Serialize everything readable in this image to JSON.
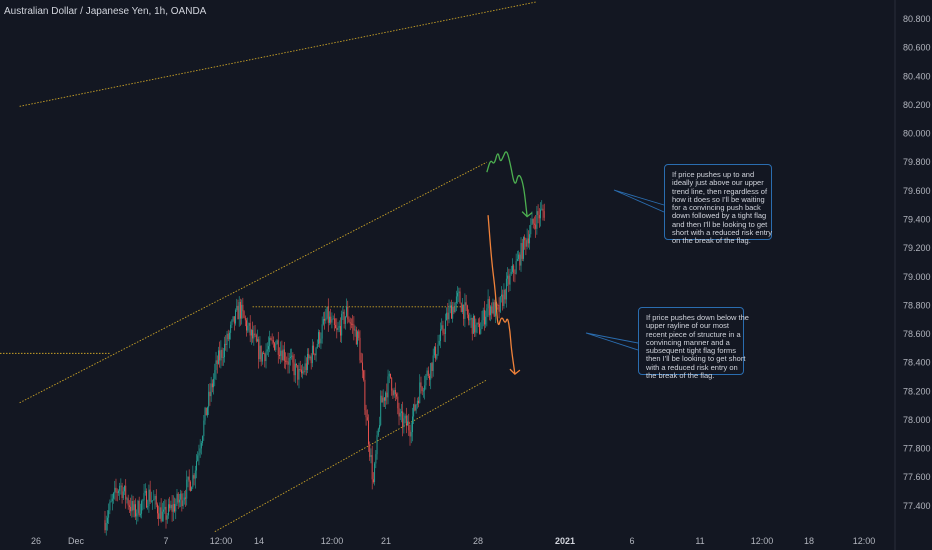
{
  "header": {
    "title": "Australian Dollar / Japanese Yen, 1h, OANDA"
  },
  "colors": {
    "background": "#131722",
    "up": "#26a69a",
    "down": "#ef5350",
    "trendline": "#c9a227",
    "green_path": "#4caf50",
    "orange_path": "#f0823a",
    "note_border": "#2a6db0"
  },
  "chart_data": {
    "type": "candlestick",
    "title": "Australian Dollar / Japanese Yen, 1h, OANDA",
    "xlabel": "",
    "ylabel": "",
    "ylim": [
      77.2,
      80.9
    ],
    "y_ticks": [
      "80.800",
      "80.600",
      "80.400",
      "80.200",
      "80.000",
      "79.800",
      "79.600",
      "79.400",
      "79.200",
      "79.000",
      "78.800",
      "78.600",
      "78.400",
      "78.200",
      "78.000",
      "77.800",
      "77.600",
      "77.400"
    ],
    "x_ticks": [
      {
        "label": "26",
        "bold": false
      },
      {
        "label": "Dec",
        "bold": false
      },
      {
        "label": "7",
        "bold": false
      },
      {
        "label": "12:00",
        "bold": false
      },
      {
        "label": "14",
        "bold": false
      },
      {
        "label": "12:00",
        "bold": false
      },
      {
        "label": "21",
        "bold": false
      },
      {
        "label": "28",
        "bold": false
      },
      {
        "label": "2021",
        "bold": true
      },
      {
        "label": "6",
        "bold": false
      },
      {
        "label": "11",
        "bold": false
      },
      {
        "label": "12:00",
        "bold": false
      },
      {
        "label": "18",
        "bold": false
      },
      {
        "label": "12:00",
        "bold": false
      }
    ],
    "price_path": [
      [
        0,
        77.3
      ],
      [
        12,
        77.55
      ],
      [
        24,
        77.35
      ],
      [
        36,
        77.48
      ],
      [
        48,
        77.32
      ],
      [
        62,
        77.45
      ],
      [
        72,
        77.6
      ],
      [
        84,
        78.1
      ],
      [
        92,
        78.4
      ],
      [
        100,
        78.55
      ],
      [
        110,
        78.78
      ],
      [
        118,
        78.62
      ],
      [
        128,
        78.45
      ],
      [
        140,
        78.55
      ],
      [
        150,
        78.42
      ],
      [
        160,
        78.3
      ],
      [
        172,
        78.5
      ],
      [
        182,
        78.72
      ],
      [
        190,
        78.6
      ],
      [
        198,
        78.75
      ],
      [
        208,
        78.55
      ],
      [
        214,
        78.05
      ],
      [
        220,
        77.55
      ],
      [
        226,
        78.1
      ],
      [
        234,
        78.3
      ],
      [
        242,
        78.0
      ],
      [
        250,
        77.95
      ],
      [
        258,
        78.22
      ],
      [
        266,
        78.35
      ],
      [
        274,
        78.55
      ],
      [
        282,
        78.75
      ],
      [
        290,
        78.85
      ],
      [
        298,
        78.7
      ],
      [
        306,
        78.62
      ],
      [
        314,
        78.8
      ],
      [
        322,
        78.75
      ],
      [
        330,
        78.95
      ],
      [
        338,
        79.1
      ],
      [
        346,
        79.28
      ],
      [
        354,
        79.42
      ],
      [
        360,
        79.46
      ]
    ],
    "support_line": {
      "from": [
        0.0,
        78.465
      ],
      "to": [
        0.33,
        78.465
      ]
    },
    "resistance_line": {
      "from": [
        -2,
        78.79
      ],
      "to": [
        192,
        78.79
      ]
    },
    "upper_trendline": {
      "from": [
        -70,
        78.12
      ],
      "to": [
        313,
        79.8
      ]
    },
    "lower_trendline": {
      "from": [
        90,
        77.22
      ],
      "to": [
        313,
        78.28
      ]
    },
    "top_line": {
      "from": [
        -70,
        80.19
      ],
      "to": [
        354,
        80.92
      ]
    },
    "scenarios": [
      {
        "name": "green",
        "path": [
          [
            313,
            79.73
          ],
          [
            316,
            79.82
          ],
          [
            319,
            79.78
          ],
          [
            322,
            79.88
          ],
          [
            324,
            79.8
          ],
          [
            326,
            79.83
          ],
          [
            329,
            79.89
          ],
          [
            332,
            79.8
          ],
          [
            336,
            79.62
          ],
          [
            339,
            79.73
          ],
          [
            343,
            79.65
          ],
          [
            346,
            79.42
          ]
        ]
      },
      {
        "name": "orange",
        "path": [
          [
            314,
            79.43
          ],
          [
            317,
            79.1
          ],
          [
            320,
            78.9
          ],
          [
            322,
            78.63
          ],
          [
            325,
            78.73
          ],
          [
            328,
            78.67
          ],
          [
            330,
            78.72
          ],
          [
            332,
            78.62
          ],
          [
            333,
            78.5
          ],
          [
            336,
            78.32
          ]
        ]
      }
    ],
    "annotations": [
      {
        "lines": [
          "If price pushes up to and",
          "ideally just above our upper",
          "trend line, then regardless of",
          "how it does so I'll be waiting",
          "for a convincing push back",
          "down followed by a tight flag",
          "and then I'll be looking to get",
          "short with a reduced risk entry",
          "on the break of the flag."
        ]
      },
      {
        "lines": [
          "If price pushes down below the",
          "upper rayline of our most",
          "recent piece of structure in a",
          "convincing manner and a",
          "subsequent tight flag forms",
          "then I'll be looking to get short",
          "with a reduced risk entry on",
          "the break of the flag."
        ]
      }
    ]
  }
}
